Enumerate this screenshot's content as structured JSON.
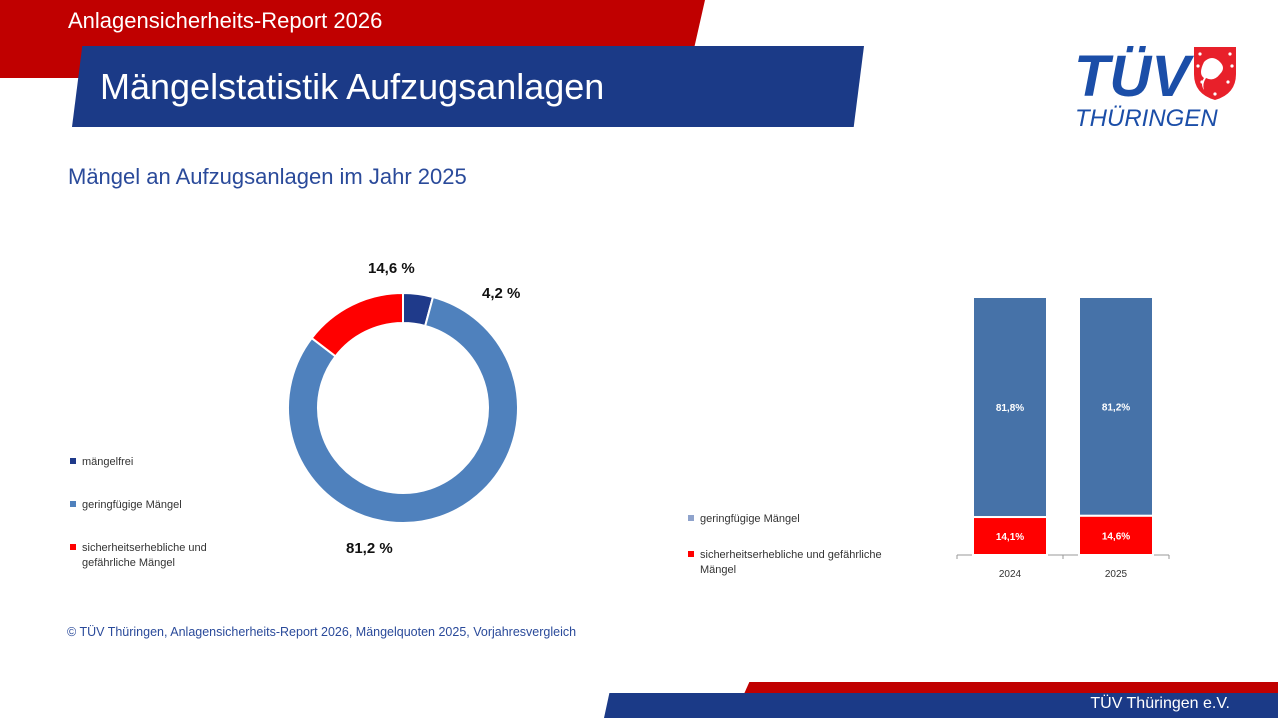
{
  "header": {
    "report_title": "Anlagensicherheits-Report 2026",
    "page_title": "Mängelstatistik Aufzugsanlagen",
    "logo_main": "TÜV",
    "logo_sub": "THÜRINGEN"
  },
  "subtitle": "Mängel an Aufzugsanlagen im Jahr 2025",
  "colors": {
    "red": "#c00000",
    "navy": "#1b3a87",
    "maengelfrei": "#1f3a8a",
    "geringfuegig": "#4f81bd",
    "sicherheitserheblich": "#ff0000",
    "bar_blue": "#4672a8"
  },
  "chart_data": [
    {
      "type": "pie",
      "variant": "donut",
      "title": "Mängel an Aufzugsanlagen im Jahr 2025",
      "legend_position": "left",
      "slices": [
        {
          "name": "mängelfrei",
          "value": 4.2,
          "label": "4,2 %",
          "color": "#1f3a8a"
        },
        {
          "name": "geringfügige Mängel",
          "value": 81.2,
          "label": "81,2 %",
          "color": "#4f81bd"
        },
        {
          "name": "sicherheitserhebliche und gefährliche Mängel",
          "value": 14.6,
          "label": "14,6 %",
          "color": "#ff0000"
        }
      ],
      "legend": [
        {
          "label": "mängelfrei",
          "color": "#1f3a8a"
        },
        {
          "label": "geringfügige Mängel",
          "color": "#4f81bd"
        },
        {
          "label_line1": "sicherheitserhebliche und",
          "label_line2": "gefährliche Mängel",
          "color": "#ff0000"
        }
      ]
    },
    {
      "type": "bar",
      "stacked": true,
      "categories": [
        "2024",
        "2025"
      ],
      "series": [
        {
          "name": "sicherheitserhebliche und gefährliche Mängel",
          "values": [
            14.1,
            14.6
          ],
          "labels": [
            "14,1%",
            "14,6%"
          ],
          "color": "#ff0000"
        },
        {
          "name": "geringfügige Mängel",
          "values": [
            81.8,
            81.2
          ],
          "labels": [
            "81,8%",
            "81,2%"
          ],
          "color": "#4672a8"
        }
      ],
      "ylim": [
        0,
        95.8
      ],
      "grid": false,
      "legend_position": "left",
      "legend": [
        {
          "label": "geringfügige Mängel",
          "color": "#8fa3cc"
        },
        {
          "label_line1": "sicherheitserhebliche und gefährliche",
          "label_line2": "Mängel",
          "color": "#ff0000"
        }
      ]
    }
  ],
  "footnote": "© TÜV Thüringen, Anlagensicherheits-Report 2026, Mängelquoten 2025, Vorjahresvergleich",
  "footer": {
    "org": "TÜV Thüringen e.V."
  }
}
